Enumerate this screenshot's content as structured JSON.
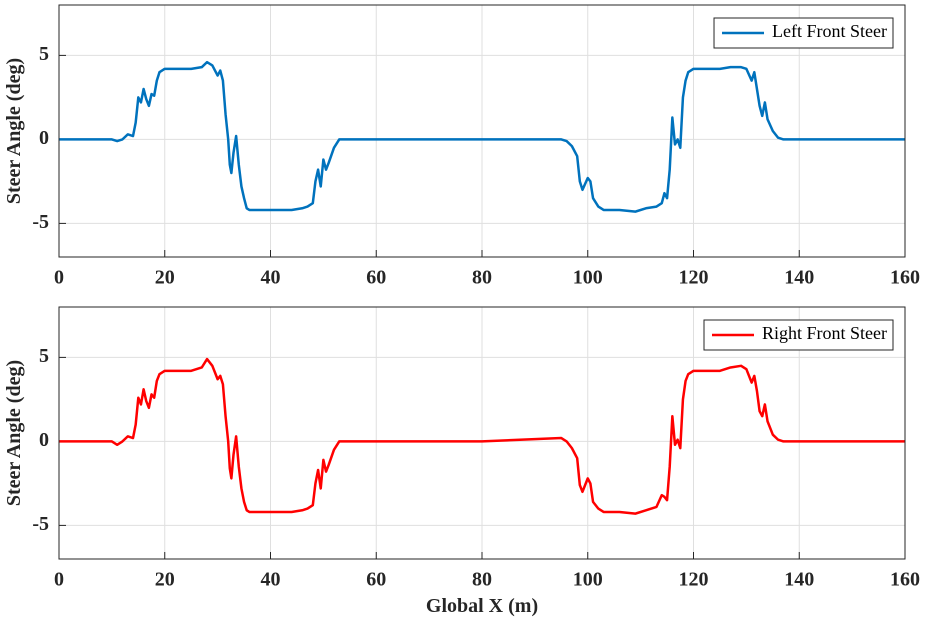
{
  "chart_data": [
    {
      "type": "line",
      "ylabel": "Steer Angle (deg)",
      "xlim": [
        0,
        160
      ],
      "ylim": [
        -7,
        8
      ],
      "xticks": [
        0,
        20,
        40,
        60,
        80,
        100,
        120,
        140,
        160
      ],
      "yticks": [
        -5,
        0,
        5
      ],
      "grid": true,
      "legend": "northeast",
      "x": [
        0,
        10,
        11,
        12,
        13,
        14,
        14.5,
        15,
        15.5,
        16,
        16.5,
        17,
        17.5,
        18,
        18.5,
        19,
        20,
        25,
        27,
        28,
        29,
        30,
        30.5,
        31,
        31.5,
        32,
        32.3,
        32.6,
        33,
        33.5,
        34,
        34.5,
        35,
        35.5,
        36,
        40,
        44,
        46,
        47,
        48,
        48.5,
        49,
        49.5,
        50,
        50.5,
        51,
        52,
        53,
        60,
        80,
        95,
        96,
        97,
        98,
        98.5,
        99,
        100,
        100.5,
        101,
        102,
        103,
        106,
        109,
        111,
        113,
        114,
        114.5,
        115,
        115.5,
        116,
        116.5,
        117,
        117.5,
        118,
        118.5,
        119,
        120,
        125,
        127,
        129,
        130,
        131,
        131.5,
        132,
        132.5,
        133,
        133.5,
        134,
        135,
        136,
        137,
        160
      ],
      "series": [
        {
          "name": "Left Front Steer",
          "color": "#0072bd",
          "values": [
            0,
            0,
            -0.1,
            0,
            0.3,
            0.2,
            1,
            2.5,
            2.2,
            3,
            2.4,
            2,
            2.7,
            2.6,
            3.5,
            4,
            4.2,
            4.2,
            4.3,
            4.6,
            4.4,
            3.8,
            4.1,
            3.5,
            1.5,
            0,
            -1.5,
            -2,
            -0.8,
            0.2,
            -1.5,
            -2.8,
            -3.5,
            -4.1,
            -4.2,
            -4.2,
            -4.2,
            -4.1,
            -4,
            -3.8,
            -2.5,
            -1.8,
            -2.8,
            -1.2,
            -1.8,
            -1.4,
            -0.5,
            0,
            0,
            0,
            0,
            -0.1,
            -0.4,
            -1,
            -2.5,
            -3,
            -2.3,
            -2.5,
            -3.5,
            -4,
            -4.2,
            -4.2,
            -4.3,
            -4.1,
            -4,
            -3.8,
            -3.2,
            -3.5,
            -1.8,
            1.3,
            -0.3,
            0,
            -0.5,
            2.5,
            3.5,
            4,
            4.2,
            4.2,
            4.3,
            4.3,
            4.2,
            3.5,
            4,
            3,
            2,
            1.4,
            2.2,
            1.2,
            0.5,
            0.1,
            0,
            0
          ]
        }
      ]
    },
    {
      "type": "line",
      "ylabel": "Steer Angle (deg)",
      "xlabel": "Global X (m)",
      "xlim": [
        0,
        160
      ],
      "ylim": [
        -7,
        8
      ],
      "xticks": [
        0,
        20,
        40,
        60,
        80,
        100,
        120,
        140,
        160
      ],
      "yticks": [
        -5,
        0,
        5
      ],
      "grid": true,
      "legend": "northeast",
      "x": [
        0,
        10,
        11,
        12,
        13,
        14,
        14.5,
        15,
        15.5,
        16,
        16.5,
        17,
        17.5,
        18,
        18.5,
        19,
        20,
        25,
        27,
        28,
        29,
        30,
        30.5,
        31,
        31.5,
        32,
        32.3,
        32.6,
        33,
        33.5,
        34,
        34.5,
        35,
        35.5,
        36,
        40,
        44,
        46,
        47,
        48,
        48.5,
        49,
        49.5,
        50,
        50.5,
        51,
        52,
        53,
        60,
        80,
        95,
        96,
        97,
        98,
        98.5,
        99,
        100,
        100.5,
        101,
        102,
        103,
        106,
        109,
        111,
        113,
        114,
        114.5,
        115,
        115.5,
        116,
        116.5,
        117,
        117.5,
        118,
        118.5,
        119,
        120,
        125,
        127,
        129,
        130,
        131,
        131.5,
        132,
        132.5,
        133,
        133.5,
        134,
        135,
        136,
        137,
        160
      ],
      "series": [
        {
          "name": "Right Front Steer",
          "color": "#ff0000",
          "values": [
            0,
            0,
            -0.2,
            0,
            0.3,
            0.2,
            1,
            2.6,
            2.2,
            3.1,
            2.4,
            2,
            2.8,
            2.6,
            3.6,
            4,
            4.2,
            4.2,
            4.4,
            4.9,
            4.5,
            3.7,
            3.9,
            3.4,
            1.5,
            0,
            -1.6,
            -2.2,
            -0.8,
            0.3,
            -1.5,
            -2.8,
            -3.6,
            -4.1,
            -4.2,
            -4.2,
            -4.2,
            -4.1,
            -4,
            -3.8,
            -2.5,
            -1.7,
            -2.8,
            -1.1,
            -1.8,
            -1.4,
            -0.5,
            0,
            0,
            0,
            0.2,
            0,
            -0.4,
            -1,
            -2.6,
            -3,
            -2.2,
            -2.5,
            -3.6,
            -4,
            -4.2,
            -4.2,
            -4.3,
            -4.1,
            -3.9,
            -3.2,
            -3.3,
            -3.5,
            -1.5,
            1.5,
            -0.2,
            0.1,
            -0.4,
            2.5,
            3.6,
            4,
            4.2,
            4.2,
            4.4,
            4.5,
            4.3,
            3.5,
            3.9,
            3,
            1.8,
            1.5,
            2.2,
            1.2,
            0.4,
            0.1,
            0,
            0
          ]
        }
      ]
    }
  ]
}
